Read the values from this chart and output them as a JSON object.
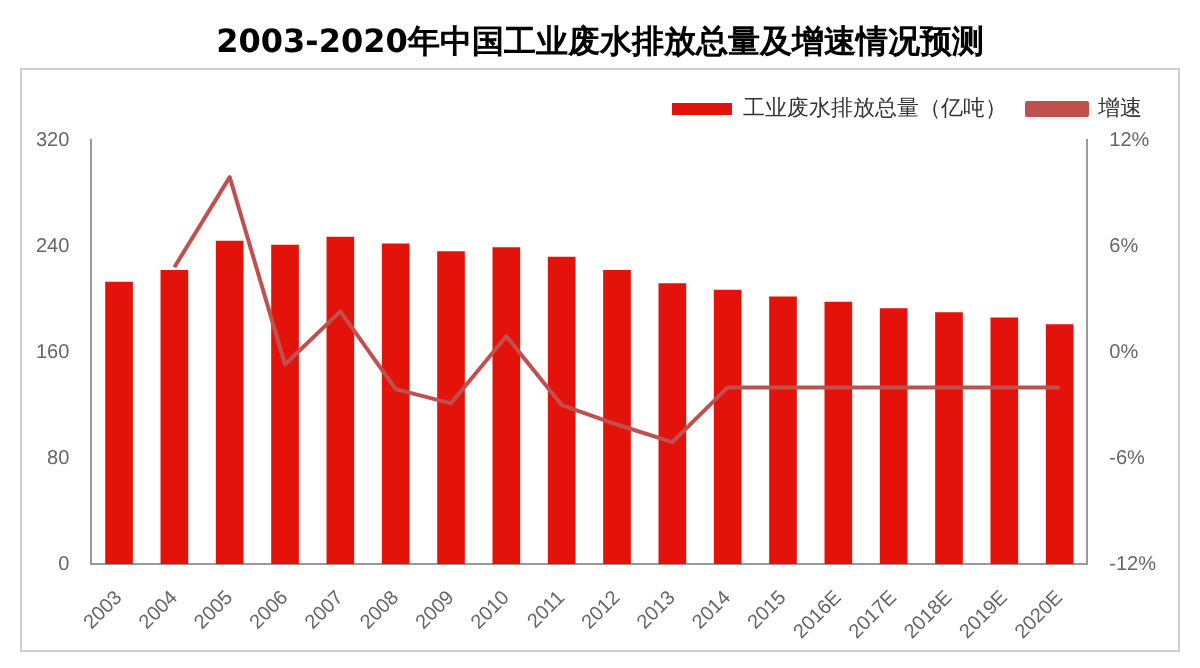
{
  "chart_data": {
    "type": "bar",
    "title": "2003-2020年中国工业废水排放总量及增速情况预测",
    "categories": [
      "2003",
      "2004",
      "2005",
      "2006",
      "2007",
      "2008",
      "2009",
      "2010",
      "2011",
      "2012",
      "2013",
      "2014",
      "2015",
      "2016E",
      "2017E",
      "2018E",
      "2019E",
      "2020E"
    ],
    "series": [
      {
        "name": "工业废水排放总量（亿吨）",
        "color": "#e3120b",
        "values": [
          213,
          222,
          244,
          241,
          247,
          242,
          236,
          239,
          232,
          222,
          212,
          207,
          202,
          198,
          193,
          190,
          186,
          181
        ]
      },
      {
        "name": "增速",
        "type": "line",
        "axis": "y2",
        "color": "#c0504d",
        "values": [
          null,
          4.8,
          9.9,
          -0.7,
          2.3,
          -2.1,
          -2.9,
          0.9,
          -3.0,
          -4.1,
          -5.1,
          -2.0,
          -2.0,
          -2.0,
          -2.0,
          -2.0,
          -2.0,
          -2.0
        ]
      }
    ],
    "ylim": [
      0,
      320
    ],
    "yticks": [
      0,
      80,
      160,
      240,
      320
    ],
    "y2lim": [
      -12,
      12
    ],
    "y2ticks": [
      {
        "value": -12,
        "label": "-12%"
      },
      {
        "value": -6,
        "label": "-6%"
      },
      {
        "value": 0,
        "label": "0%"
      },
      {
        "value": 6,
        "label": "6%"
      },
      {
        "value": 12,
        "label": "12%"
      }
    ],
    "grid": false,
    "legend": "top right",
    "marker": "none"
  }
}
